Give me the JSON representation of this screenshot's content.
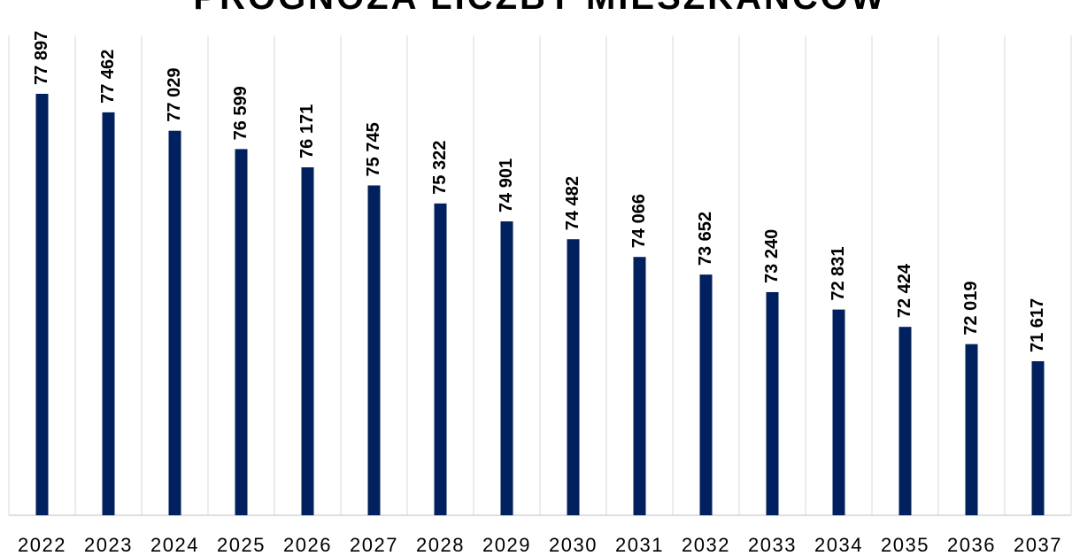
{
  "chart_data": {
    "type": "bar",
    "title": "PROGNOZA LICZBY MIESZKAŃCÓW",
    "categories": [
      "2022",
      "2023",
      "2024",
      "2025",
      "2026",
      "2027",
      "2028",
      "2029",
      "2030",
      "2031",
      "2032",
      "2033",
      "2034",
      "2035",
      "2036",
      "2037"
    ],
    "values": [
      77897,
      77462,
      77029,
      76599,
      76171,
      75745,
      75322,
      74901,
      74482,
      74066,
      73652,
      73240,
      72831,
      72424,
      72019,
      71617
    ],
    "value_labels": [
      "77 897",
      "77 462",
      "77 029",
      "76 599",
      "76 171",
      "75 745",
      "75 322",
      "74 901",
      "74 482",
      "74 066",
      "73 652",
      "73 240",
      "72 831",
      "72 424",
      "72 019",
      "71 617"
    ],
    "color": "#002060",
    "ylim": [
      68000,
      78000
    ]
  }
}
